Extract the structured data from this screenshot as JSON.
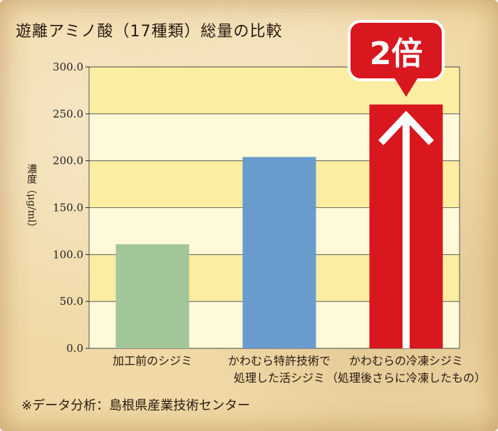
{
  "title": "遊離アミノ酸（17種類）総量の比較",
  "footnote": "※データ分析：島根県産業技術センター",
  "badge_text": "2倍",
  "colors": {
    "bar1": "#a3c59a",
    "bar2": "#6a9bcd",
    "bar3": "#d8171e",
    "band_dark": "#fbeea2",
    "band_light": "#fefad9",
    "badge": "#d8171e"
  },
  "chart_data": {
    "type": "bar",
    "categories": [
      [
        "加工前のシジミ"
      ],
      [
        "かわむら特許技術で",
        "処理した活シジミ"
      ],
      [
        "かわむらの冷凍シジミ",
        "（処理後さらに冷凍したもの）"
      ]
    ],
    "values": [
      111,
      204,
      260
    ],
    "ylabel": "濃度（μg/ml）",
    "ylim": [
      0,
      300
    ],
    "yticks": [
      "0.0",
      "50.0",
      "100.0",
      "150.0",
      "200.0",
      "250.0",
      "300.0"
    ],
    "grid": true,
    "annotation": "2倍"
  }
}
